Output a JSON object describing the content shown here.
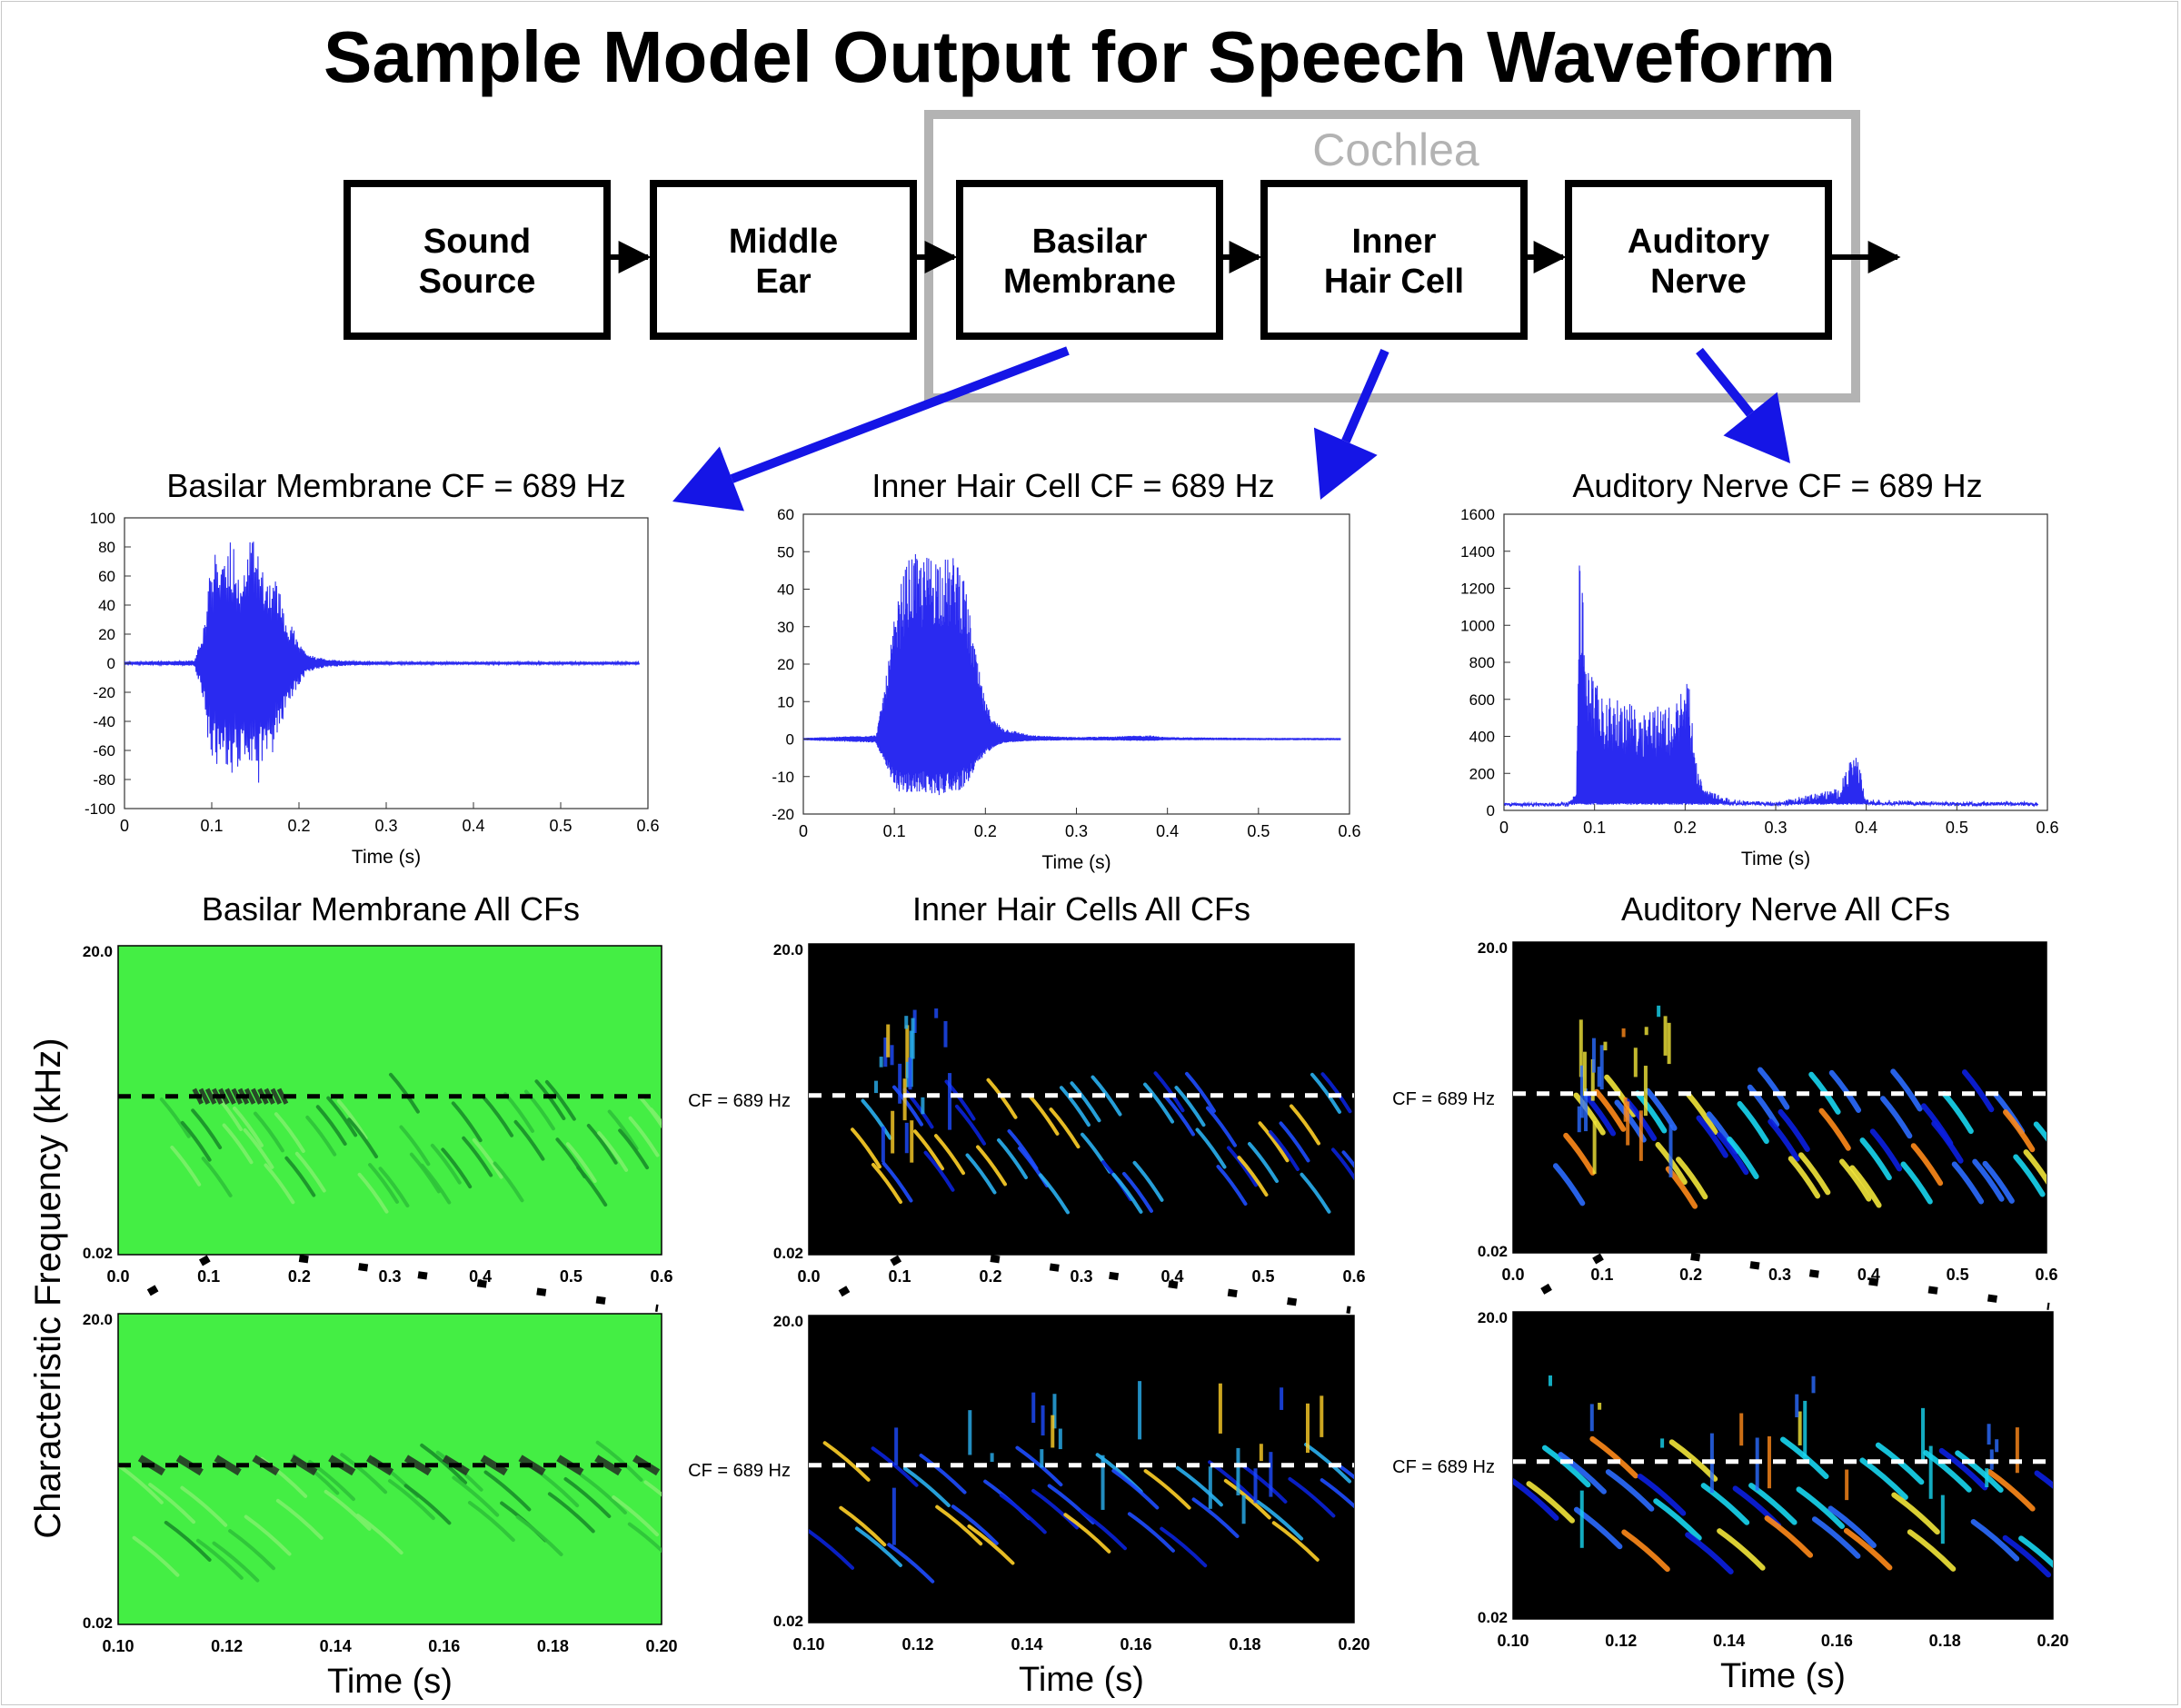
{
  "title": "Sample Model Output for Speech Waveform",
  "diagram": {
    "group_label": "Cochlea",
    "blocks": [
      {
        "id": "sound-source",
        "lines": [
          "Sound",
          "Source"
        ]
      },
      {
        "id": "middle-ear",
        "lines": [
          "Middle",
          "Ear"
        ]
      },
      {
        "id": "basilar-membrane",
        "lines": [
          "Basilar",
          "Membrane"
        ]
      },
      {
        "id": "inner-hair-cell",
        "lines": [
          "Inner",
          "Hair Cell"
        ]
      },
      {
        "id": "auditory-nerve",
        "lines": [
          "Auditory",
          "Nerve"
        ]
      }
    ]
  },
  "colors": {
    "trace": "#2a2af0",
    "pointer_arrow": "#1515e6",
    "cochlea_frame": "#b3b3b3",
    "bm_background": "#44ee44",
    "ihc_background": "#000000",
    "an_background": "#000000"
  },
  "y_axis_label": "Characteristic Frequency (kHz)",
  "cf_marker_label": "CF = 689 Hz",
  "chart_data": [
    {
      "id": "bm-waveform",
      "type": "line",
      "title": "Basilar Membrane CF = 689 Hz",
      "xlabel": "Time (s)",
      "ylabel": "",
      "xlim": [
        0,
        0.6
      ],
      "ylim": [
        -100,
        100
      ],
      "xticks": [
        0,
        0.1,
        0.2,
        0.3,
        0.4,
        0.5,
        0.6
      ],
      "yticks": [
        -100,
        -80,
        -60,
        -40,
        -20,
        0,
        20,
        40,
        60,
        80,
        100
      ],
      "series": [
        {
          "x": [
            0,
            0.08,
            0.09,
            0.1,
            0.11,
            0.12,
            0.13,
            0.14,
            0.15,
            0.16,
            0.17,
            0.18,
            0.19,
            0.2,
            0.21,
            0.22,
            0.25,
            0.3,
            0.4,
            0.5,
            0.59
          ],
          "envelope": [
            1,
            2,
            30,
            72,
            90,
            92,
            80,
            86,
            92,
            86,
            65,
            50,
            30,
            15,
            8,
            4,
            2,
            1,
            1,
            1,
            1
          ]
        }
      ]
    },
    {
      "id": "ihc-waveform",
      "type": "line",
      "title": "Inner Hair Cell CF = 689 Hz",
      "xlabel": "Time (s)",
      "ylabel": "",
      "xlim": [
        0,
        0.6
      ],
      "ylim": [
        -20,
        60
      ],
      "xticks": [
        0,
        0.1,
        0.2,
        0.3,
        0.4,
        0.5,
        0.6
      ],
      "yticks": [
        -20,
        -10,
        0,
        10,
        20,
        30,
        40,
        50,
        60
      ],
      "series": [
        {
          "x": [
            0,
            0.08,
            0.09,
            0.1,
            0.11,
            0.12,
            0.13,
            0.14,
            0.15,
            0.16,
            0.17,
            0.18,
            0.19,
            0.2,
            0.21,
            0.22,
            0.25,
            0.3,
            0.38,
            0.4,
            0.5,
            0.59
          ],
          "peaks": [
            0.3,
            1,
            15,
            32,
            45,
            50,
            48,
            50,
            50,
            48,
            50,
            38,
            22,
            10,
            5,
            3,
            1,
            0.5,
            1,
            0.5,
            0.3,
            0.3
          ],
          "troughs": [
            -0.3,
            -1,
            -8,
            -13,
            -15,
            -15,
            -14,
            -15,
            -15,
            -14,
            -14,
            -12,
            -8,
            -4,
            -2,
            -1,
            -0.5,
            -0.3,
            -0.5,
            -0.3,
            -0.3,
            -0.3
          ]
        }
      ]
    },
    {
      "id": "an-waveform",
      "type": "line",
      "title": "Auditory Nerve CF = 689 Hz",
      "xlabel": "Time (s)",
      "ylabel": "",
      "xlim": [
        0,
        0.6
      ],
      "ylim": [
        0,
        1600
      ],
      "xticks": [
        0,
        0.1,
        0.2,
        0.3,
        0.4,
        0.5,
        0.6
      ],
      "yticks": [
        0,
        200,
        400,
        600,
        800,
        1000,
        1200,
        1400,
        1600
      ],
      "series": [
        {
          "x": [
            0,
            0.07,
            0.08,
            0.083,
            0.09,
            0.1,
            0.11,
            0.12,
            0.14,
            0.16,
            0.18,
            0.19,
            0.2,
            0.205,
            0.21,
            0.22,
            0.25,
            0.3,
            0.37,
            0.38,
            0.39,
            0.4,
            0.5,
            0.59
          ],
          "peaks": [
            40,
            40,
            100,
            1520,
            900,
            700,
            620,
            600,
            580,
            570,
            570,
            580,
            700,
            720,
            300,
            120,
            60,
            45,
            120,
            250,
            300,
            60,
            45,
            45
          ]
        }
      ]
    },
    {
      "id": "bm-all-cfs",
      "type": "heatmap",
      "title": "Basilar Membrane  All CFs",
      "xlabel": "",
      "ylabel": "",
      "xlim": [
        0,
        0.6
      ],
      "ylim": [
        0.02,
        20.0
      ],
      "yscale": "log",
      "xticks": [
        0.0,
        0.1,
        0.2,
        0.3,
        0.4,
        0.5,
        0.6
      ],
      "yticks": [
        0.02,
        20.0
      ],
      "cf_marker": 0.689
    },
    {
      "id": "ihc-all-cfs",
      "type": "heatmap",
      "title": "Inner Hair Cells  All CFs",
      "xlabel": "",
      "ylabel": "",
      "xlim": [
        0,
        0.6
      ],
      "ylim": [
        0.02,
        20.0
      ],
      "yscale": "log",
      "xticks": [
        0.0,
        0.1,
        0.2,
        0.3,
        0.4,
        0.5,
        0.6
      ],
      "yticks": [
        0.02,
        20.0
      ],
      "cf_marker": 0.689
    },
    {
      "id": "an-all-cfs",
      "type": "heatmap",
      "title": "Auditory Nerve  All CFs",
      "xlabel": "",
      "ylabel": "",
      "xlim": [
        0,
        0.6
      ],
      "ylim": [
        0.02,
        20.0
      ],
      "yscale": "log",
      "xticks": [
        0.0,
        0.1,
        0.2,
        0.3,
        0.4,
        0.5,
        0.6
      ],
      "yticks": [
        0.02,
        20.0
      ],
      "cf_marker": 0.689
    },
    {
      "id": "bm-zoom",
      "type": "heatmap",
      "title": "",
      "xlabel": "Time (s)",
      "ylabel": "",
      "xlim": [
        0.1,
        0.2
      ],
      "ylim": [
        0.02,
        20.0
      ],
      "yscale": "log",
      "xticks": [
        0.1,
        0.12,
        0.14,
        0.16,
        0.18,
        0.2
      ],
      "xticklabels": [
        "0.10",
        "0.12",
        "0.14",
        "0.16",
        "0.18",
        "0.20"
      ],
      "yticks": [
        0.02,
        20.0
      ],
      "cf_marker": 0.689
    },
    {
      "id": "ihc-zoom",
      "type": "heatmap",
      "title": "",
      "xlabel": "Time (s)",
      "ylabel": "",
      "xlim": [
        0.1,
        0.2
      ],
      "ylim": [
        0.02,
        20.0
      ],
      "yscale": "log",
      "xticks": [
        0.1,
        0.12,
        0.14,
        0.16,
        0.18,
        0.2
      ],
      "xticklabels": [
        "0.10",
        "0.12",
        "0.14",
        "0.16",
        "0.18",
        "0.20"
      ],
      "yticks": [
        0.02,
        20.0
      ],
      "cf_marker": 0.689
    },
    {
      "id": "an-zoom",
      "type": "heatmap",
      "title": "",
      "xlabel": "Time (s)",
      "ylabel": "",
      "xlim": [
        0.1,
        0.2
      ],
      "ylim": [
        0.02,
        20.0
      ],
      "yscale": "log",
      "xticks": [
        0.1,
        0.12,
        0.14,
        0.16,
        0.18,
        0.2
      ],
      "xticklabels": [
        "0.10",
        "0.12",
        "0.14",
        "0.16",
        "0.18",
        "0.20"
      ],
      "yticks": [
        0.02,
        20.0
      ],
      "cf_marker": 0.689
    }
  ]
}
